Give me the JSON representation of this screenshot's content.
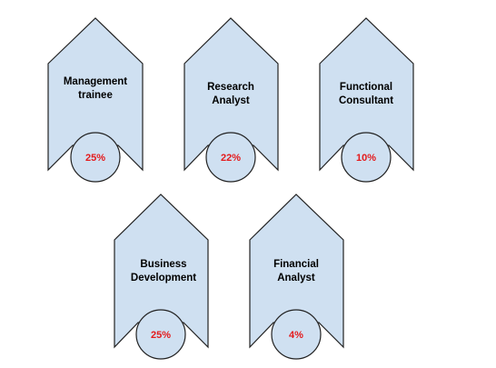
{
  "diagram": {
    "items": [
      {
        "label_lines": [
          "Management",
          "trainee"
        ],
        "percent": "25%"
      },
      {
        "label_lines": [
          "Research",
          "Analyst"
        ],
        "percent": "22%"
      },
      {
        "label_lines": [
          "Functional",
          "Consultant"
        ],
        "percent": "10%"
      },
      {
        "label_lines": [
          "Business",
          "Development"
        ],
        "percent": "25%"
      },
      {
        "label_lines": [
          "Financial",
          "Analyst"
        ],
        "percent": "4%"
      }
    ]
  },
  "colors": {
    "shape_fill": "#cfe0f1",
    "outline": "#222222",
    "percent_text": "#e41a1c",
    "label_text": "#000000"
  }
}
